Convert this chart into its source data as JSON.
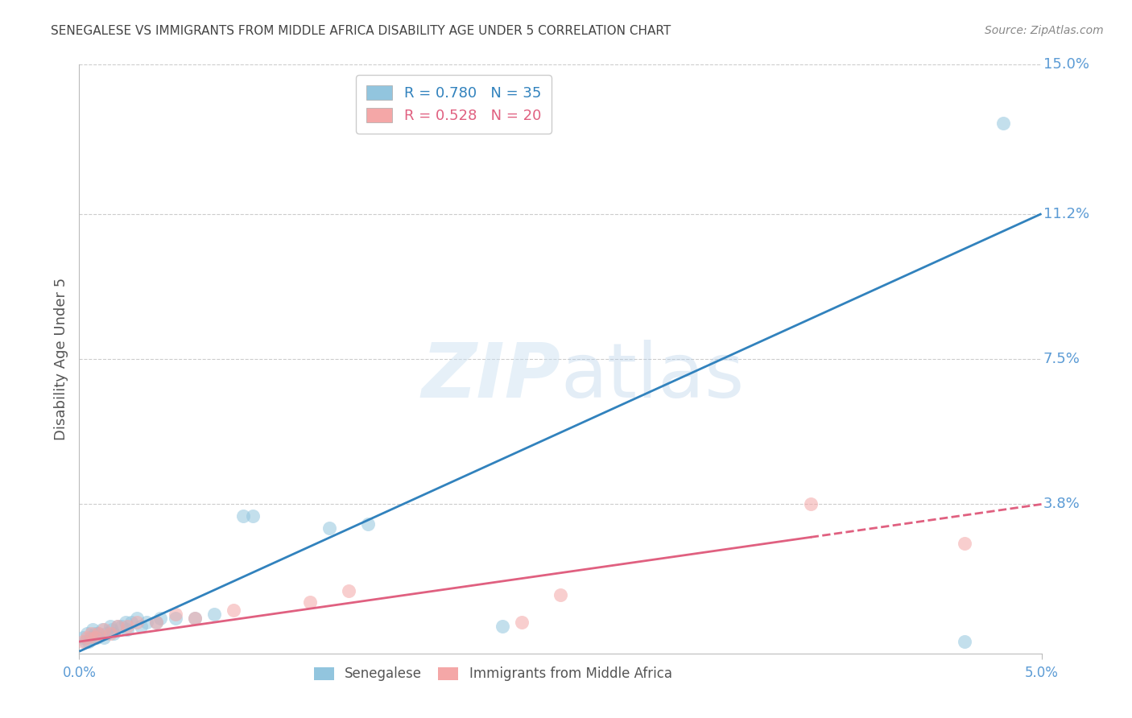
{
  "title": "SENEGALESE VS IMMIGRANTS FROM MIDDLE AFRICA DISABILITY AGE UNDER 5 CORRELATION CHART",
  "source": "Source: ZipAtlas.com",
  "ylabel": "Disability Age Under 5",
  "xlim": [
    0.0,
    0.05
  ],
  "ylim": [
    0.0,
    0.15
  ],
  "senegalese_x": [
    0.0002,
    0.0003,
    0.0004,
    0.0005,
    0.0006,
    0.0007,
    0.0008,
    0.0009,
    0.001,
    0.0012,
    0.0013,
    0.0014,
    0.0016,
    0.0017,
    0.0018,
    0.002,
    0.0022,
    0.0024,
    0.0025,
    0.0027,
    0.003,
    0.0032,
    0.0035,
    0.004,
    0.0042,
    0.005,
    0.006,
    0.007,
    0.0085,
    0.009,
    0.013,
    0.015,
    0.022,
    0.046,
    0.048
  ],
  "senegalese_y": [
    0.004,
    0.003,
    0.005,
    0.003,
    0.004,
    0.006,
    0.005,
    0.004,
    0.005,
    0.006,
    0.004,
    0.005,
    0.007,
    0.006,
    0.005,
    0.007,
    0.007,
    0.008,
    0.006,
    0.008,
    0.009,
    0.007,
    0.008,
    0.008,
    0.009,
    0.009,
    0.009,
    0.01,
    0.035,
    0.035,
    0.032,
    0.033,
    0.007,
    0.003,
    0.135
  ],
  "immigrants_x": [
    0.0002,
    0.0004,
    0.0006,
    0.0008,
    0.001,
    0.0013,
    0.0016,
    0.002,
    0.0025,
    0.003,
    0.004,
    0.005,
    0.006,
    0.008,
    0.012,
    0.014,
    0.023,
    0.025,
    0.038,
    0.046
  ],
  "immigrants_y": [
    0.003,
    0.004,
    0.005,
    0.004,
    0.005,
    0.006,
    0.005,
    0.007,
    0.007,
    0.008,
    0.008,
    0.01,
    0.009,
    0.011,
    0.013,
    0.016,
    0.008,
    0.015,
    0.038,
    0.028
  ],
  "blue_line_x": [
    0.0,
    0.05
  ],
  "blue_line_y": [
    0.0005,
    0.112
  ],
  "pink_line_x": [
    0.0,
    0.05
  ],
  "pink_line_y": [
    0.003,
    0.038
  ],
  "dot_color_blue": "#92c5de",
  "dot_color_pink": "#f4a7a7",
  "line_color_blue": "#3182bd",
  "line_color_pink": "#e06080",
  "grid_color": "#cccccc",
  "background_color": "#ffffff",
  "title_color": "#444444",
  "axis_label_color": "#555555",
  "tick_label_color": "#5b9bd5",
  "source_color": "#888888",
  "right_yticks": [
    0.038,
    0.075,
    0.112,
    0.15
  ],
  "right_ylabels": [
    "3.8%",
    "7.5%",
    "11.2%",
    "15.0%"
  ]
}
